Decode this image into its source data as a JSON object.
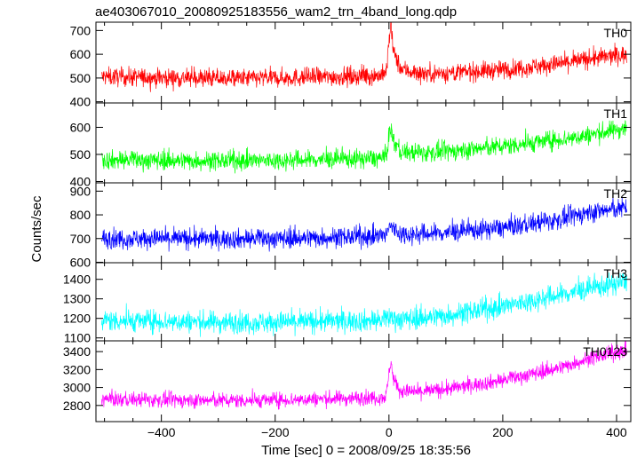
{
  "chart_data": {
    "type": "line",
    "title": "ae403067010_20080925183556_wam2_trn_4band_long.qdp",
    "xlabel": "Time [sec] 0 = 2008/09/25 18:35:56",
    "ylabel": "Counts/sec",
    "xlim": [
      -515,
      425
    ],
    "x_ticks": [
      -400,
      -200,
      0,
      200,
      400
    ],
    "x_tick_labels": [
      "−400",
      "−200",
      "0",
      "200",
      "400"
    ],
    "grid": false,
    "panels": [
      {
        "name": "TH0",
        "color": "#ff0000",
        "ylim": [
          395,
          735
        ],
        "y_ticks": [
          400,
          500,
          600,
          700
        ],
        "x": [
          -500,
          -400,
          -300,
          -200,
          -100,
          -20,
          -5,
          0,
          3,
          8,
          20,
          50,
          100,
          200,
          300,
          350,
          420
        ],
        "y": [
          505,
          502,
          498,
          500,
          505,
          510,
          520,
          650,
          720,
          610,
          540,
          520,
          520,
          535,
          560,
          580,
          600
        ],
        "noise": 28
      },
      {
        "name": "TH1",
        "color": "#00ff00",
        "ylim": [
          395,
          690
        ],
        "y_ticks": [
          400,
          500,
          600
        ],
        "x": [
          -500,
          -400,
          -300,
          -200,
          -100,
          -20,
          -5,
          0,
          3,
          8,
          20,
          50,
          100,
          200,
          300,
          350,
          420
        ],
        "y": [
          480,
          478,
          476,
          478,
          482,
          485,
          490,
          570,
          600,
          550,
          510,
          505,
          510,
          530,
          555,
          570,
          600
        ],
        "noise": 25
      },
      {
        "name": "TH2",
        "color": "#0000ff",
        "ylim": [
          598,
          935
        ],
        "y_ticks": [
          600,
          700,
          800,
          900
        ],
        "x": [
          -500,
          -400,
          -300,
          -200,
          -100,
          -20,
          -5,
          0,
          3,
          8,
          20,
          50,
          100,
          200,
          300,
          350,
          420
        ],
        "y": [
          700,
          700,
          698,
          700,
          705,
          710,
          715,
          740,
          760,
          740,
          720,
          718,
          725,
          745,
          780,
          810,
          830
        ],
        "noise": 30
      },
      {
        "name": "TH3",
        "color": "#00ffff",
        "ylim": [
          1085,
          1485
        ],
        "y_ticks": [
          1100,
          1200,
          1300,
          1400
        ],
        "x": [
          -500,
          -400,
          -300,
          -200,
          -100,
          -20,
          -5,
          0,
          3,
          8,
          20,
          50,
          100,
          200,
          300,
          350,
          420
        ],
        "y": [
          1190,
          1185,
          1180,
          1180,
          1185,
          1190,
          1190,
          1200,
          1210,
          1200,
          1195,
          1200,
          1215,
          1260,
          1320,
          1350,
          1390
        ],
        "noise": 40
      },
      {
        "name": "TH0123",
        "color": "#ff00ff",
        "ylim": [
          2620,
          3520
        ],
        "y_ticks": [
          2800,
          3000,
          3200,
          3400
        ],
        "x": [
          -500,
          -400,
          -300,
          -200,
          -100,
          -20,
          -5,
          0,
          3,
          8,
          20,
          50,
          100,
          200,
          300,
          350,
          420
        ],
        "y": [
          2870,
          2860,
          2855,
          2860,
          2875,
          2890,
          2900,
          3150,
          3300,
          3100,
          2960,
          2950,
          2980,
          3080,
          3220,
          3320,
          3420
        ],
        "noise": 60
      }
    ]
  }
}
